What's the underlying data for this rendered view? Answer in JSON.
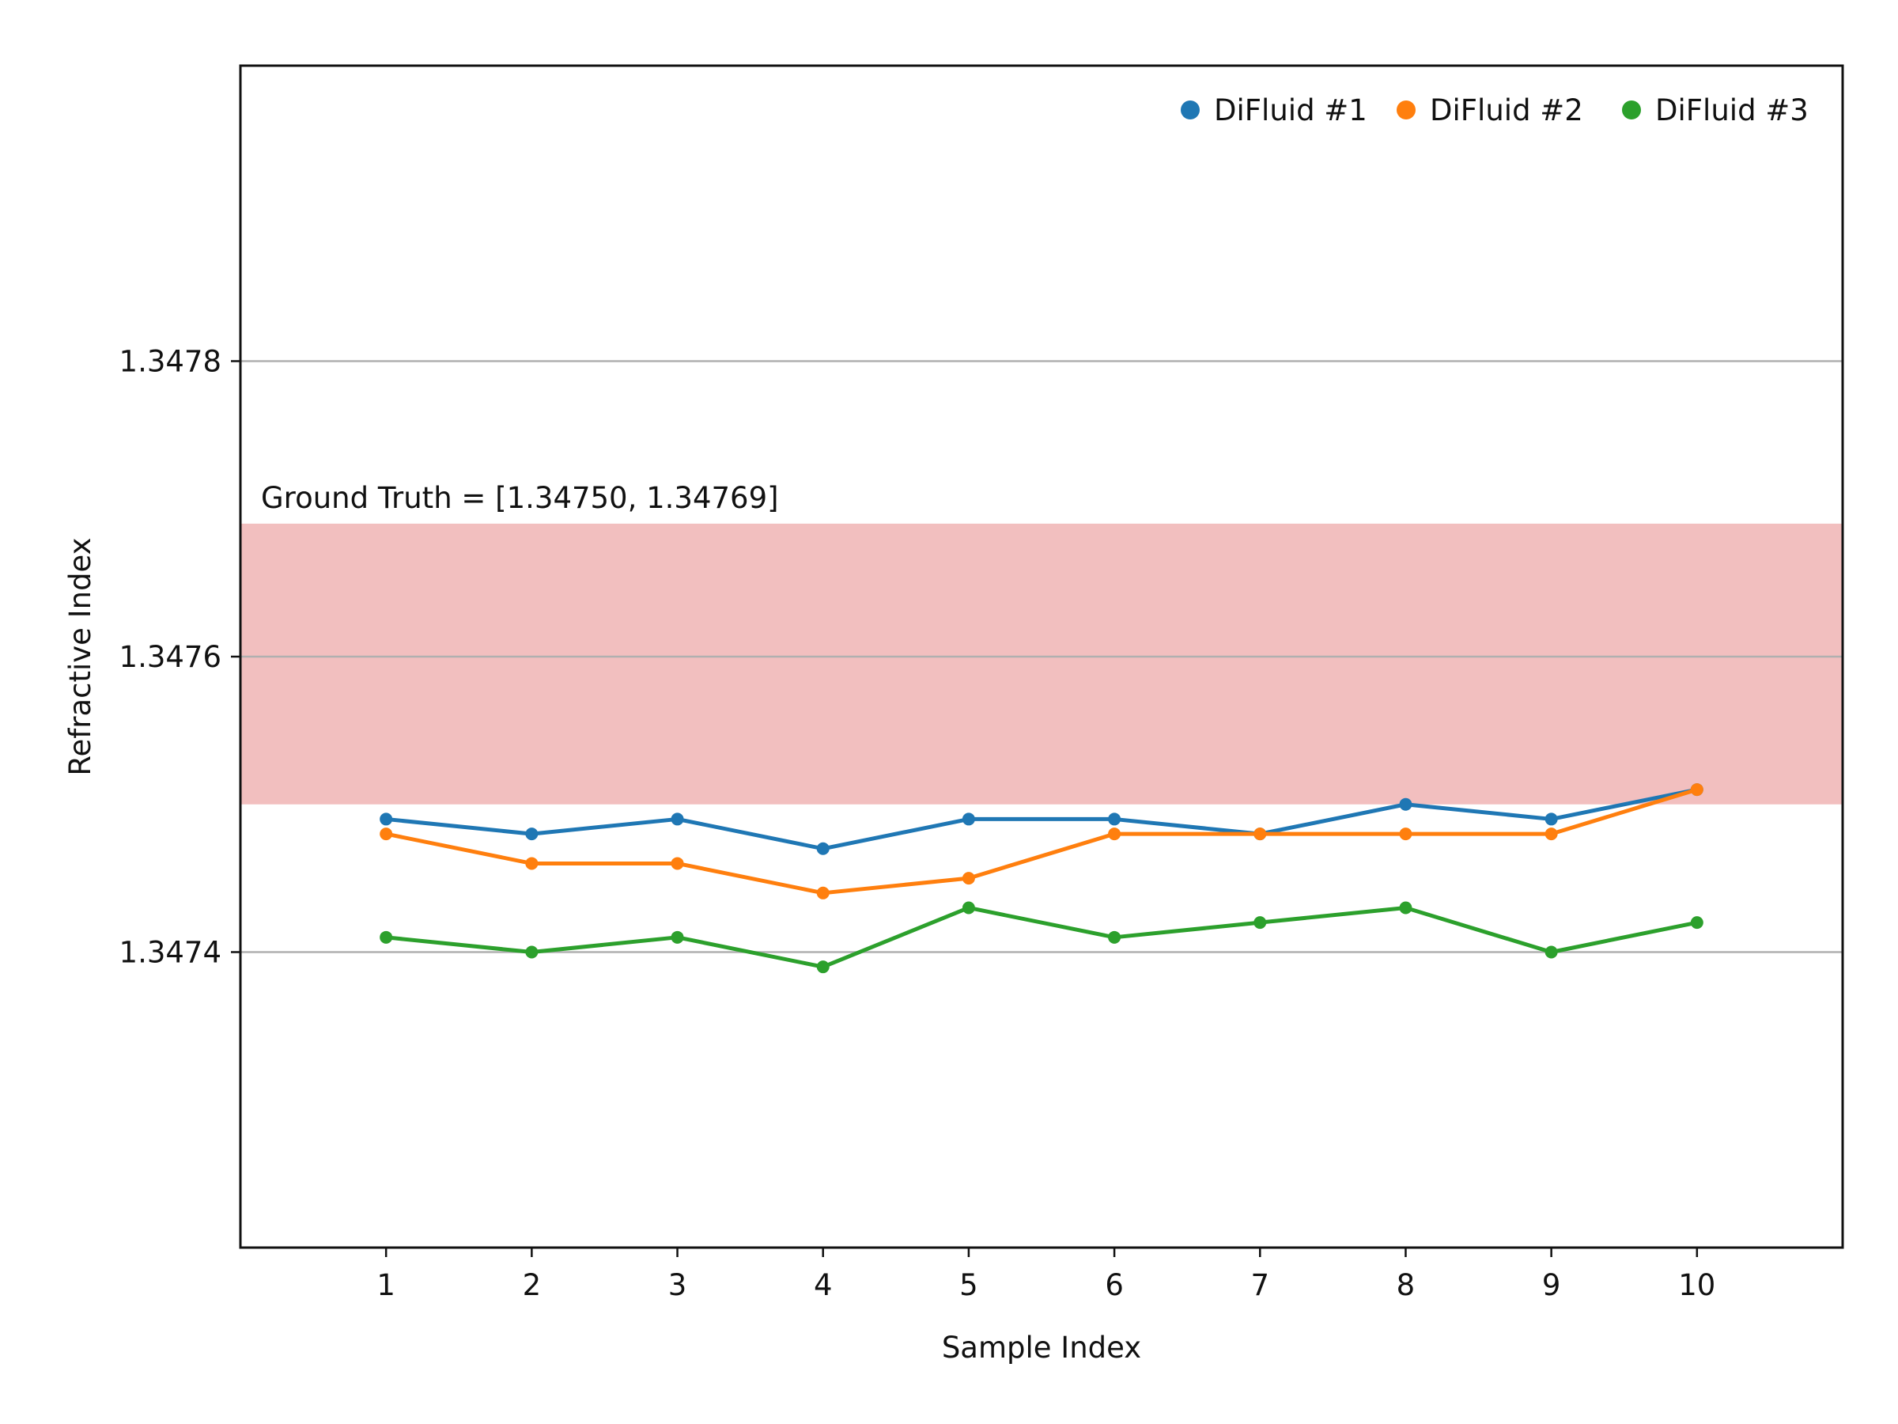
{
  "chart_data": {
    "type": "line",
    "xlabel": "Sample Index",
    "ylabel": "Refractive Index",
    "x": [
      1,
      2,
      3,
      4,
      5,
      6,
      7,
      8,
      9,
      10
    ],
    "xlim": [
      0,
      11
    ],
    "ylim": [
      1.3472,
      1.348
    ],
    "yticks": [
      1.3474,
      1.3476,
      1.3478
    ],
    "ytick_labels": [
      "1.3474",
      "1.3476",
      "1.3478"
    ],
    "xtick_labels": [
      "1",
      "2",
      "3",
      "4",
      "5",
      "6",
      "7",
      "8",
      "9",
      "10"
    ],
    "grid": "horizontal",
    "legend_position": "top-right",
    "series": [
      {
        "name": "DiFluid #1",
        "color": "#1f77b4",
        "values": [
          1.34749,
          1.34748,
          1.34749,
          1.34747,
          1.34749,
          1.34749,
          1.34748,
          1.3475,
          1.34749,
          1.34751
        ]
      },
      {
        "name": "DiFluid #2",
        "color": "#ff7f0e",
        "values": [
          1.34748,
          1.34746,
          1.34746,
          1.34744,
          1.34745,
          1.34748,
          1.34748,
          1.34748,
          1.34748,
          1.34751
        ]
      },
      {
        "name": "DiFluid #3",
        "color": "#2ca02c",
        "values": [
          1.34741,
          1.3474,
          1.34741,
          1.34739,
          1.34743,
          1.34741,
          1.34742,
          1.34743,
          1.3474,
          1.34742
        ]
      }
    ],
    "band": {
      "label": "Ground Truth = [1.34750, 1.34769]",
      "range": [
        1.3475,
        1.34769
      ],
      "fill_color": "#f2bfbf",
      "label_color": "#d62728"
    }
  }
}
